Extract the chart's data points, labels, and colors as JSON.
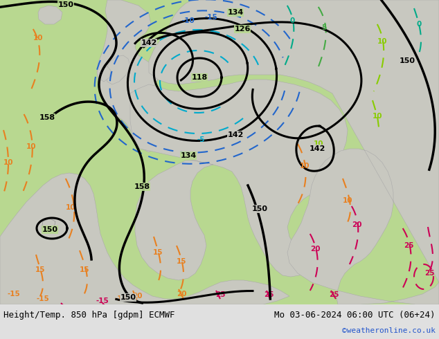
{
  "title_left": "Height/Temp. 850 hPa [gdpm] ECMWF",
  "title_right": "Mo 03-06-2024 06:00 UTC (06+24)",
  "credit": "©weatheronline.co.uk",
  "bg_sea_color": "#b8d890",
  "bg_land_color": "#c8c8c0",
  "bottom_bar_color": "#e0e0e0",
  "contour_black_lw": 2.2,
  "contour_temp_lw": 1.5,
  "orange": "#e88020",
  "magenta": "#cc0055",
  "cyan": "#00aacc",
  "blue_cold": "#2266cc",
  "green_warm": "#44aa44",
  "lime": "#88cc00"
}
